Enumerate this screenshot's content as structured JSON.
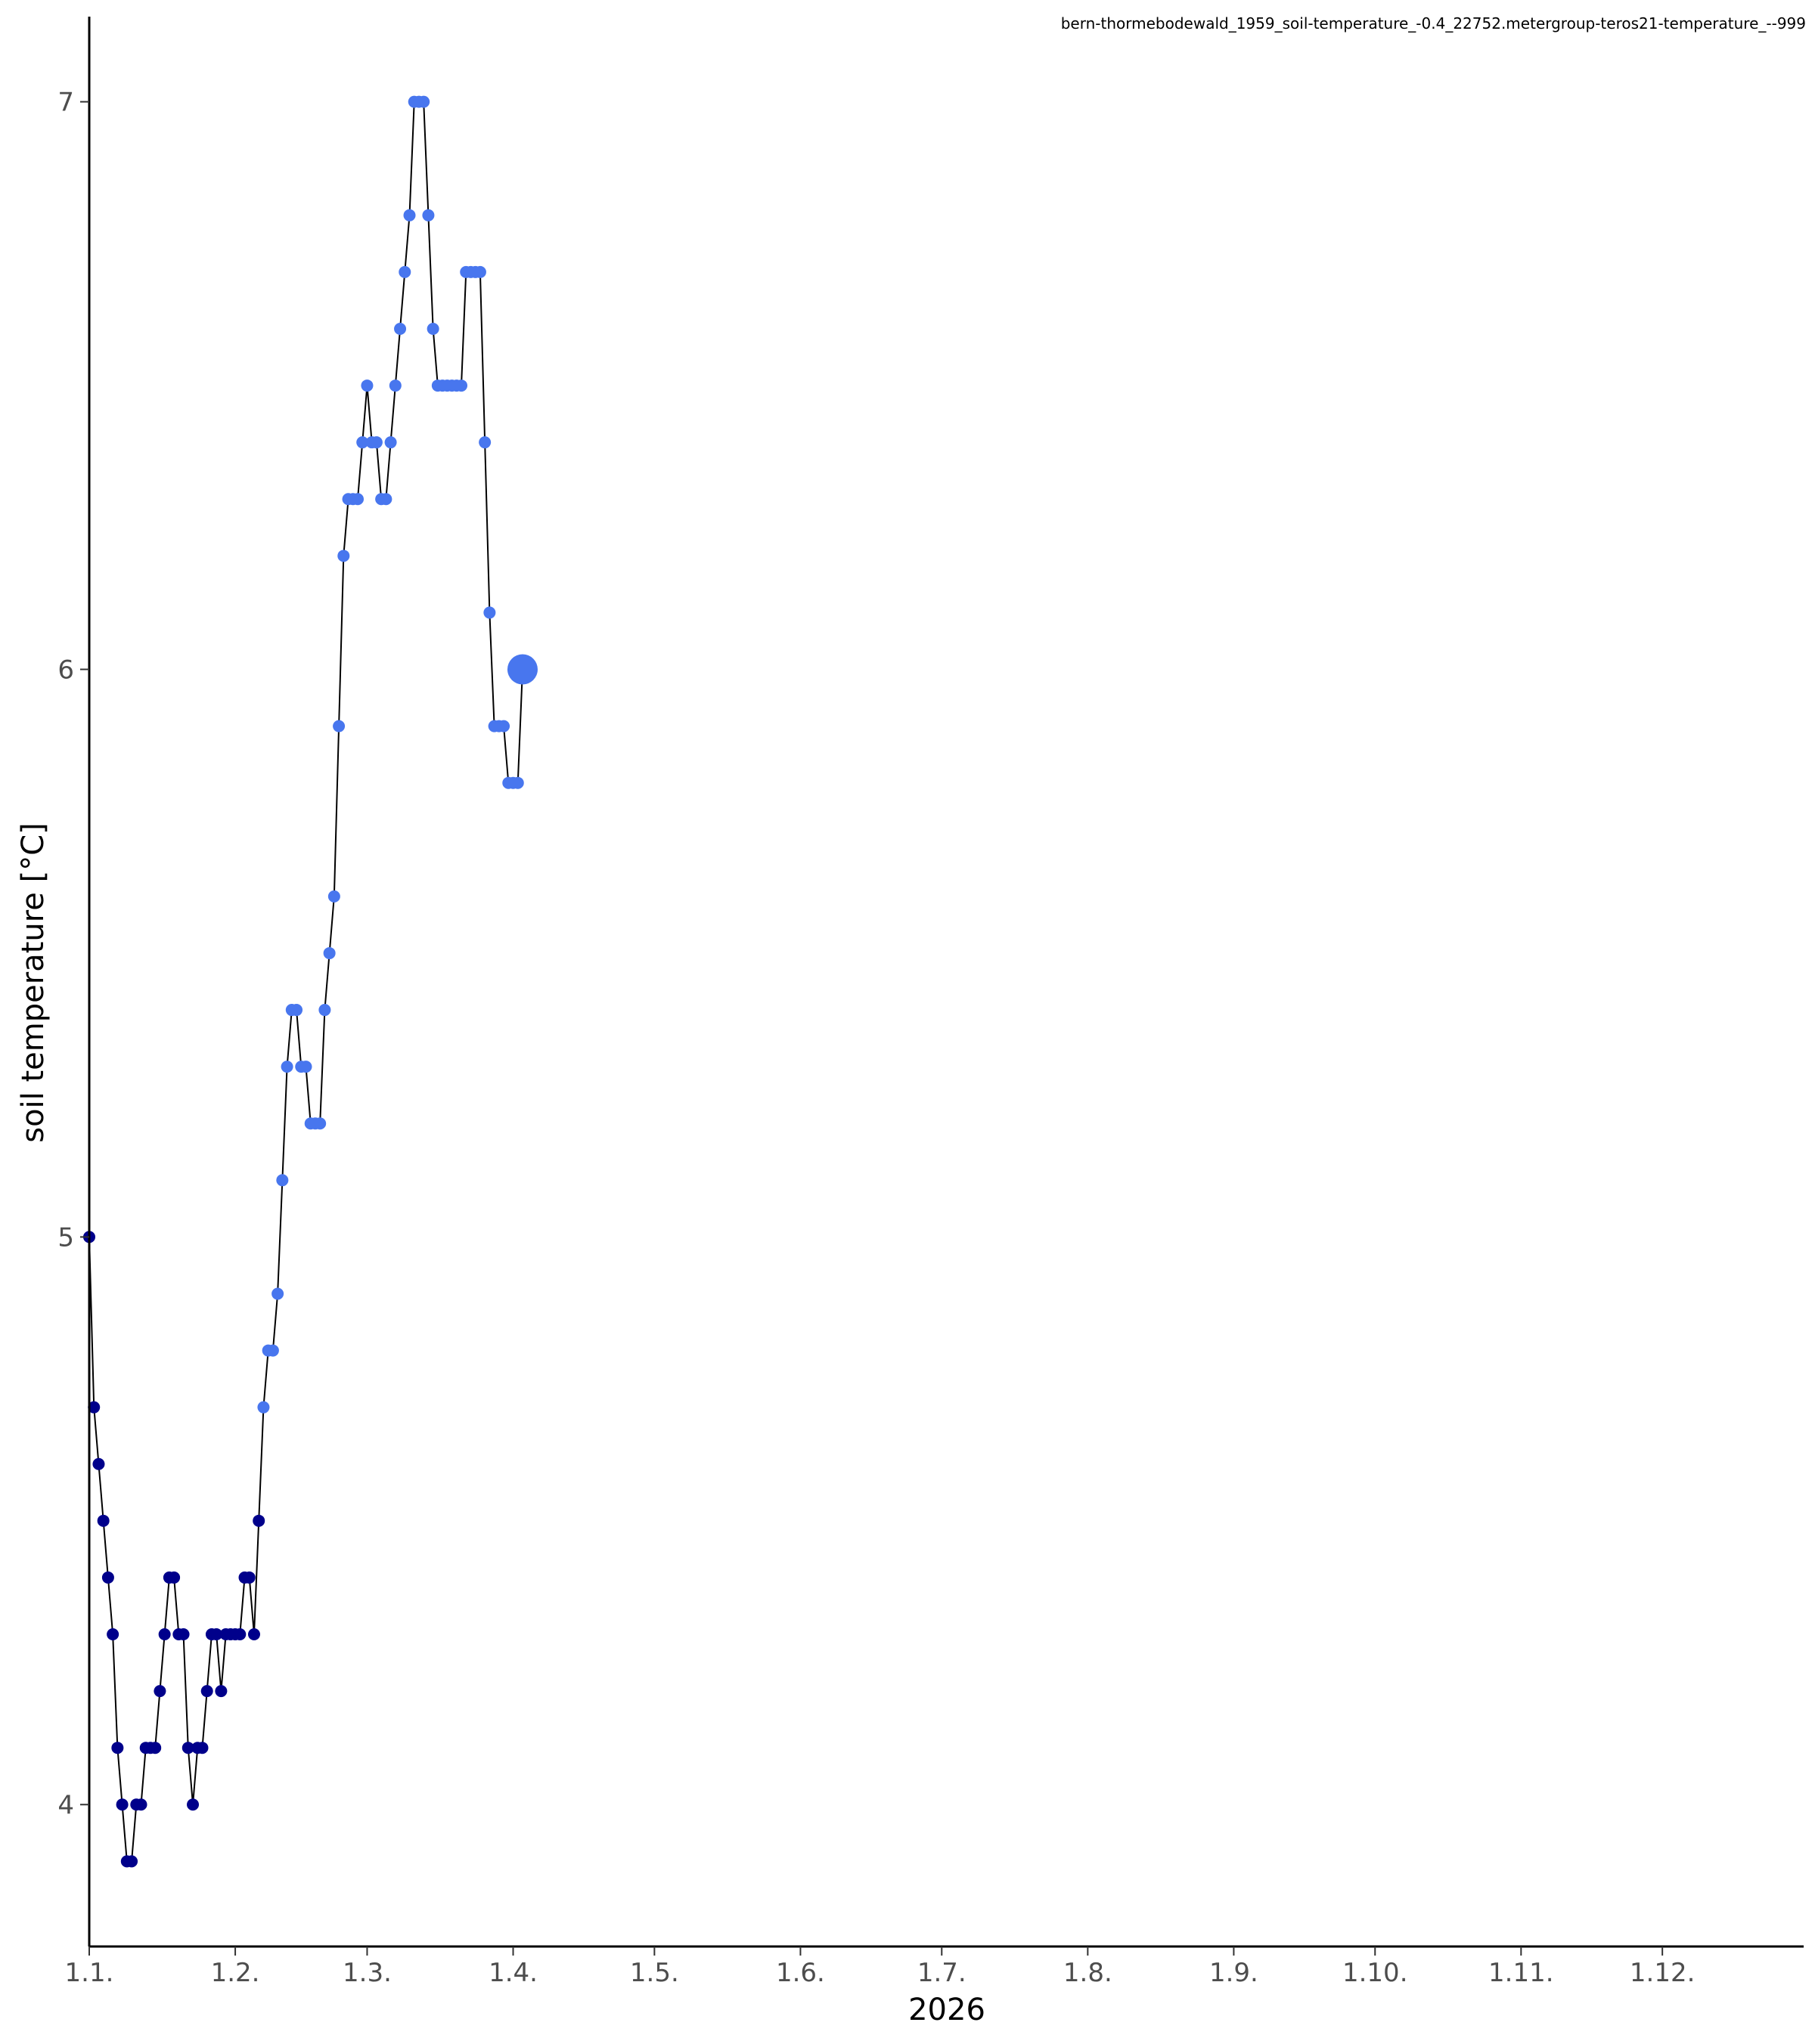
{
  "chart_data": {
    "type": "line",
    "subtitle": "bern-thormebodewald_1959_soil-temperature_-0.4_22752.metergroup-teros21-temperature_--999",
    "xlabel": "2026",
    "ylabel": "soil temperature [°C]",
    "x_unit": "day of year 2026",
    "xlim": [
      1,
      365
    ],
    "ylim": [
      3.75,
      7.15
    ],
    "x_ticks": [
      {
        "value": 1,
        "label": "1.1."
      },
      {
        "value": 32,
        "label": "1.2."
      },
      {
        "value": 60,
        "label": "1.3."
      },
      {
        "value": 91,
        "label": "1.4."
      },
      {
        "value": 121,
        "label": "1.5."
      },
      {
        "value": 152,
        "label": "1.6."
      },
      {
        "value": 182,
        "label": "1.7."
      },
      {
        "value": 213,
        "label": "1.8."
      },
      {
        "value": 244,
        "label": "1.9."
      },
      {
        "value": 274,
        "label": "1.10."
      },
      {
        "value": 305,
        "label": "1.11."
      },
      {
        "value": 335,
        "label": "1.12."
      }
    ],
    "y_ticks": [
      {
        "value": 4,
        "label": "4"
      },
      {
        "value": 5,
        "label": "5"
      },
      {
        "value": 6,
        "label": "6"
      },
      {
        "value": 7,
        "label": "7"
      }
    ],
    "grid": false,
    "line_color": "#000000",
    "colors": {
      "before": "#00008b",
      "after": "#4876ee",
      "last": "#4876ee"
    },
    "color_split_day": 38,
    "series": [
      {
        "x": [
          1,
          2,
          3,
          4,
          5,
          6,
          7,
          8,
          9,
          10,
          11,
          12,
          13,
          14,
          15,
          16,
          17,
          18,
          19,
          20,
          21,
          22,
          23,
          24,
          25,
          26,
          27,
          28,
          29,
          30,
          31,
          32,
          33,
          34,
          35,
          36,
          37,
          38,
          39,
          40,
          41,
          42,
          43,
          44,
          45,
          46,
          47,
          48,
          49,
          50,
          51,
          52,
          53,
          54,
          55,
          56,
          57,
          58,
          59,
          60,
          61,
          62,
          63,
          64,
          65,
          66,
          67,
          68,
          69,
          70,
          71,
          72,
          73,
          74,
          75,
          76,
          77,
          78,
          79,
          80,
          81,
          82,
          83,
          84,
          85,
          86,
          87,
          88,
          89,
          90,
          91,
          92,
          93
        ],
        "y": [
          5.0,
          4.7,
          4.6,
          4.5,
          4.4,
          4.3,
          4.1,
          4.0,
          3.9,
          3.9,
          4.0,
          4.0,
          4.1,
          4.1,
          4.1,
          4.2,
          4.3,
          4.4,
          4.4,
          4.3,
          4.3,
          4.1,
          4.0,
          4.1,
          4.1,
          4.2,
          4.3,
          4.3,
          4.2,
          4.3,
          4.3,
          4.3,
          4.3,
          4.4,
          4.4,
          4.3,
          4.5,
          4.7,
          4.8,
          4.8,
          4.9,
          5.1,
          5.3,
          5.4,
          5.4,
          5.3,
          5.3,
          5.2,
          5.2,
          5.2,
          5.4,
          5.5,
          5.6,
          5.9,
          6.2,
          6.3,
          6.3,
          6.3,
          6.4,
          6.5,
          6.4,
          6.4,
          6.3,
          6.3,
          6.4,
          6.5,
          6.6,
          6.7,
          6.8,
          7.0,
          7.0,
          7.0,
          6.8,
          6.6,
          6.5,
          6.5,
          6.5,
          6.5,
          6.5,
          6.5,
          6.7,
          6.7,
          6.7,
          6.7,
          6.4,
          6.1,
          5.9,
          5.9,
          5.9,
          5.8,
          5.8,
          5.8,
          6.0
        ]
      }
    ]
  }
}
